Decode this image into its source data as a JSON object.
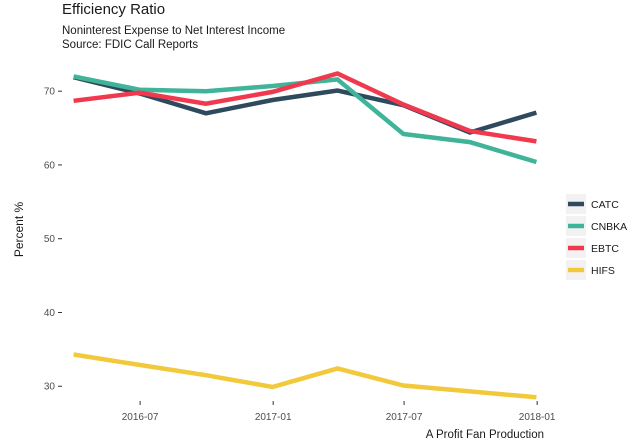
{
  "chart_data": {
    "type": "line",
    "title": "Efficiency Ratio",
    "subtitle_lines": [
      "Noninterest Expense to Net Interest Income",
      "Source: FDIC Call Reports"
    ],
    "caption": "A Profit Fan Production",
    "xlabel": "",
    "ylabel": "Percent %",
    "x": [
      "2016-03-31",
      "2016-06-30",
      "2016-09-30",
      "2016-12-31",
      "2017-03-31",
      "2017-06-30",
      "2017-09-30",
      "2017-12-31"
    ],
    "x_ticks": [
      "2016-07",
      "2017-01",
      "2017-07",
      "2018-01"
    ],
    "y_ticks": [
      30,
      40,
      50,
      60,
      70
    ],
    "ylim": [
      28.0,
      74.5
    ],
    "grid": false,
    "legend_position": "right",
    "series": [
      {
        "name": "CATC",
        "color": "#2e4a5c",
        "values": [
          71.9,
          69.7,
          67.0,
          68.8,
          70.1,
          68.1,
          64.4,
          67.1
        ]
      },
      {
        "name": "CNBKA",
        "color": "#3fb498",
        "values": [
          72.0,
          70.2,
          70.0,
          70.7,
          71.6,
          64.2,
          63.1,
          60.4
        ]
      },
      {
        "name": "EBTC",
        "color": "#f0394e",
        "values": [
          68.7,
          69.8,
          68.3,
          69.9,
          72.4,
          68.2,
          64.6,
          63.2
        ]
      },
      {
        "name": "HIFS",
        "color": "#f1c93b",
        "values": [
          34.3,
          32.9,
          31.5,
          29.9,
          32.4,
          30.1,
          29.3,
          28.5
        ]
      }
    ]
  }
}
